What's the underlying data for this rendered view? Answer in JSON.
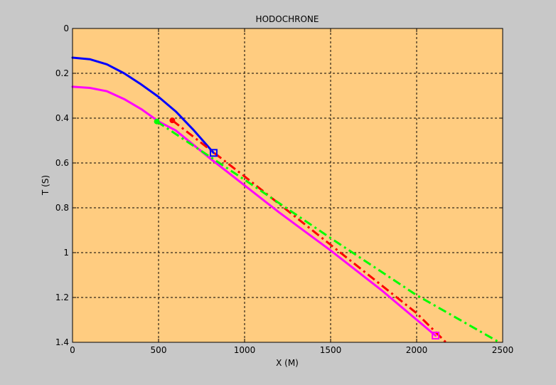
{
  "chart_data": {
    "type": "line",
    "title": "HODOCHRONE",
    "xlabel": "X (M)",
    "ylabel": "T (S)",
    "xlim": [
      0,
      2500
    ],
    "ylim": [
      0,
      1.4
    ],
    "y_reversed": true,
    "grid": true,
    "legend": "none",
    "xticks": [
      "0",
      "500",
      "1000",
      "1500",
      "2000",
      "2500"
    ],
    "yticks": [
      "0",
      "0.2",
      "0.4",
      "0.6",
      "0.8",
      "1",
      "1.2",
      "1.4"
    ],
    "series": [
      {
        "color": "#0000ff",
        "style": "solid",
        "x": [
          0,
          100,
          200,
          300,
          400,
          500,
          600,
          700,
          820
        ],
        "y": [
          0.13,
          0.137,
          0.16,
          0.2,
          0.25,
          0.305,
          0.37,
          0.45,
          0.555
        ]
      },
      {
        "color": "#ff00ff",
        "style": "solid",
        "x": [
          0,
          100,
          200,
          300,
          400,
          500,
          600,
          800,
          1000,
          1200,
          1500,
          1800,
          2110
        ],
        "y": [
          0.26,
          0.265,
          0.28,
          0.315,
          0.36,
          0.415,
          0.455,
          0.58,
          0.7,
          0.82,
          0.99,
          1.17,
          1.37
        ]
      },
      {
        "color": "#ff0000",
        "style": "dashdot",
        "x": [
          580,
          1000,
          1500,
          2000,
          2170
        ],
        "y": [
          0.41,
          0.66,
          0.965,
          1.27,
          1.4
        ]
      },
      {
        "color": "#00ff00",
        "style": "dashdot",
        "x": [
          490,
          1000,
          1500,
          2000,
          2480
        ],
        "y": [
          0.415,
          0.675,
          0.935,
          1.19,
          1.4
        ]
      }
    ],
    "markers": [
      {
        "color": "#0000ff",
        "shape": "square",
        "x": 820,
        "y": 0.555
      },
      {
        "color": "#ff00ff",
        "shape": "square",
        "x": 2110,
        "y": 1.37
      },
      {
        "color": "#ff0000",
        "shape": "circle",
        "x": 580,
        "y": 0.41
      },
      {
        "color": "#00ff00",
        "shape": "circle",
        "x": 490,
        "y": 0.415
      }
    ],
    "colors": {
      "plot_background": "#ffcc80",
      "figure_background": "#c8c8c8"
    }
  }
}
